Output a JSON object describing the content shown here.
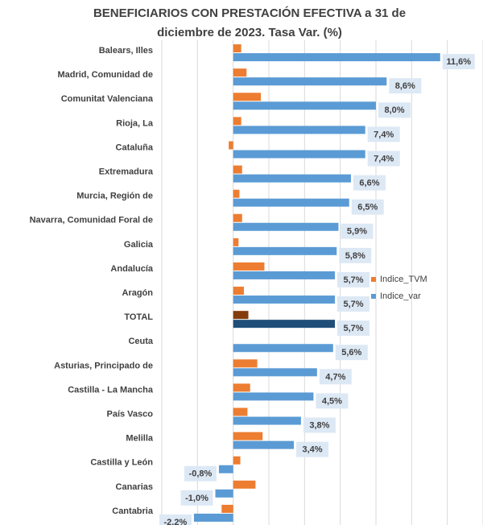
{
  "chart_data": {
    "type": "hbar",
    "title": "BENEFICIARIOS CON PRESTACIÓN EFECTIVA a 31 de diciembre de 2023. Tasa Var. (%)",
    "categories": [
      "Balears, Illes",
      "Madrid, Comunidad de",
      "Comunitat Valenciana",
      "Rioja, La",
      "Cataluña",
      "Extremadura",
      "Murcia, Región de",
      "Navarra, Comunidad Foral de",
      "Galicia",
      "Andalucía",
      "Aragón",
      "TOTAL",
      "Ceuta",
      "Asturias, Principado de",
      "Castilla - La Mancha",
      "País Vasco",
      "Melilla",
      "Castilla y León",
      "Canarias",
      "Cantabria"
    ],
    "series": [
      {
        "name": "Indice_TVM",
        "color": "#ed7d31",
        "colors": [
          "#ed7d31",
          "#ed7d31",
          "#ed7d31",
          "#ed7d31",
          "#ed7d31",
          "#ed7d31",
          "#ed7d31",
          "#ed7d31",
          "#ed7d31",
          "#ed7d31",
          "#ed7d31",
          "#843c0c",
          "#ed7d31",
          "#ed7d31",
          "#ed7d31",
          "#ed7d31",
          "#ed7d31",
          "#ed7d31",
          "#ed7d31",
          "#ed7d31"
        ],
        "values": [
          0.45,
          0.75,
          1.55,
          0.45,
          -0.25,
          0.5,
          0.35,
          0.5,
          0.3,
          1.75,
          0.6,
          0.85,
          0,
          1.35,
          0.95,
          0.8,
          1.65,
          0.4,
          1.25,
          -0.65
        ]
      },
      {
        "name": "Indice_var",
        "color": "#5b9bd5",
        "colors": [
          "#5b9bd5",
          "#5b9bd5",
          "#5b9bd5",
          "#5b9bd5",
          "#5b9bd5",
          "#5b9bd5",
          "#5b9bd5",
          "#5b9bd5",
          "#5b9bd5",
          "#5b9bd5",
          "#5b9bd5",
          "#1f4e79",
          "#5b9bd5",
          "#5b9bd5",
          "#5b9bd5",
          "#5b9bd5",
          "#5b9bd5",
          "#5b9bd5",
          "#5b9bd5",
          "#5b9bd5"
        ],
        "values": [
          11.6,
          8.6,
          8.0,
          7.4,
          7.4,
          6.6,
          6.5,
          5.9,
          5.8,
          5.7,
          5.7,
          5.7,
          5.6,
          4.7,
          4.5,
          3.8,
          3.4,
          -0.8,
          -1.0,
          -2.2
        ],
        "value_labels": [
          "11,6%",
          "8,6%",
          "8,0%",
          "7,4%",
          "7,4%",
          "6,6%",
          "6,5%",
          "5,9%",
          "5,8%",
          "5,7%",
          "5,7%",
          "5,7%",
          "5,6%",
          "4,7%",
          "4,5%",
          "3,8%",
          "3,4%",
          "-0,8%",
          "-1,0%",
          "-2,2%"
        ]
      }
    ],
    "xlim": [
      -4,
      14
    ],
    "xticks": [
      -4,
      -2,
      0,
      2,
      4,
      6,
      8,
      10,
      12,
      14
    ],
    "grid": true,
    "legend": "right"
  }
}
